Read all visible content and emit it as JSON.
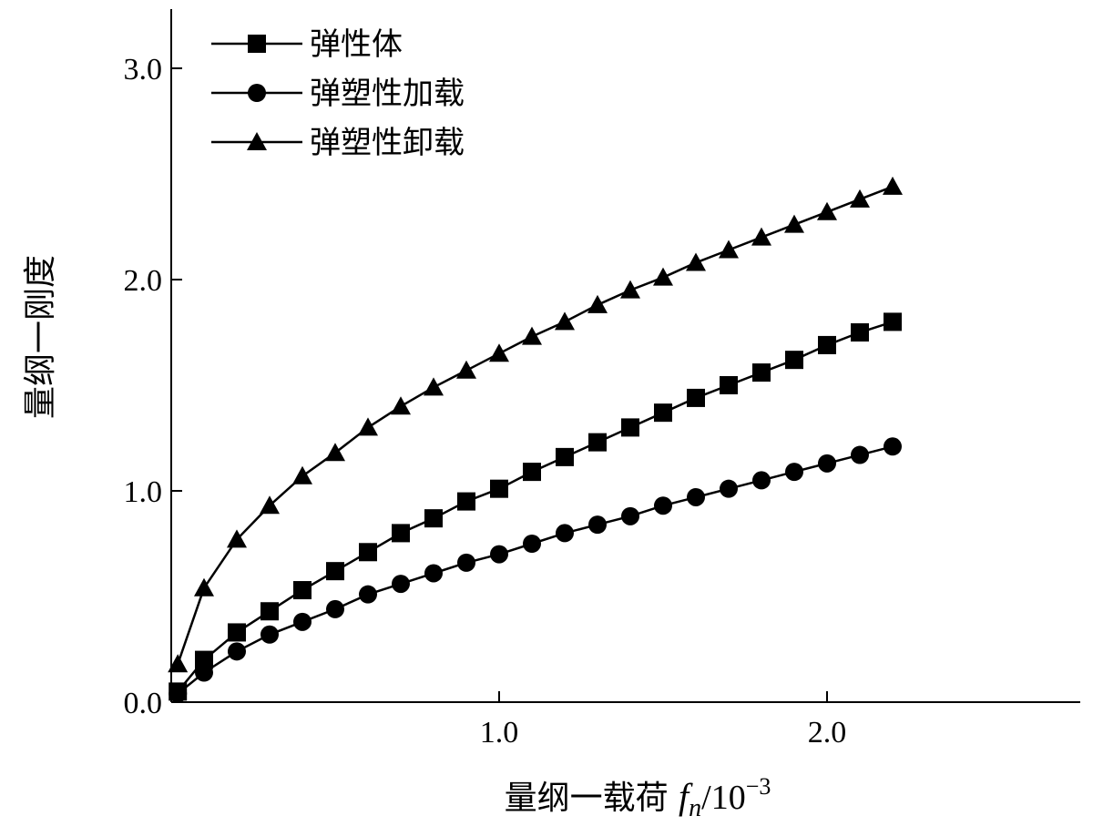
{
  "chart_data": {
    "type": "line",
    "xlabel": {
      "prefix": "量纲一载荷 ",
      "var": "f",
      "sub": "n",
      "unit": "/10",
      "exp": "−3"
    },
    "ylabel": "量纲一刚度",
    "xlim": [
      0,
      2.75
    ],
    "ylim": [
      0,
      3.3
    ],
    "xticks": [
      {
        "value": 1.0,
        "label": "1.0"
      },
      {
        "value": 2.0,
        "label": "2.0"
      }
    ],
    "yticks": [
      {
        "value": 0.0,
        "label": "0.0"
      },
      {
        "value": 1.0,
        "label": "1.0"
      },
      {
        "value": 2.0,
        "label": "2.0"
      },
      {
        "value": 3.0,
        "label": "3.0"
      }
    ],
    "legend_position": "top-left",
    "x": [
      0.02,
      0.1,
      0.2,
      0.3,
      0.4,
      0.5,
      0.6,
      0.7,
      0.8,
      0.9,
      1.0,
      1.1,
      1.2,
      1.3,
      1.4,
      1.5,
      1.6,
      1.7,
      1.8,
      1.9,
      2.0,
      2.1,
      2.2
    ],
    "series": [
      {
        "name": "弹性体",
        "marker": "square",
        "values": [
          0.05,
          0.2,
          0.33,
          0.43,
          0.53,
          0.62,
          0.71,
          0.8,
          0.87,
          0.95,
          1.01,
          1.09,
          1.16,
          1.23,
          1.3,
          1.37,
          1.44,
          1.5,
          1.56,
          1.62,
          1.69,
          1.75,
          1.8
        ]
      },
      {
        "name": "弹塑性加载",
        "marker": "circle",
        "values": [
          0.04,
          0.14,
          0.24,
          0.32,
          0.38,
          0.44,
          0.51,
          0.56,
          0.61,
          0.66,
          0.7,
          0.75,
          0.8,
          0.84,
          0.88,
          0.93,
          0.97,
          1.01,
          1.05,
          1.09,
          1.13,
          1.17,
          1.21
        ]
      },
      {
        "name": "弹塑性卸载",
        "marker": "triangle",
        "values": [
          0.18,
          0.54,
          0.77,
          0.93,
          1.07,
          1.18,
          1.3,
          1.4,
          1.49,
          1.57,
          1.65,
          1.73,
          1.8,
          1.88,
          1.95,
          2.01,
          2.08,
          2.14,
          2.2,
          2.26,
          2.32,
          2.38,
          2.44
        ]
      }
    ]
  }
}
